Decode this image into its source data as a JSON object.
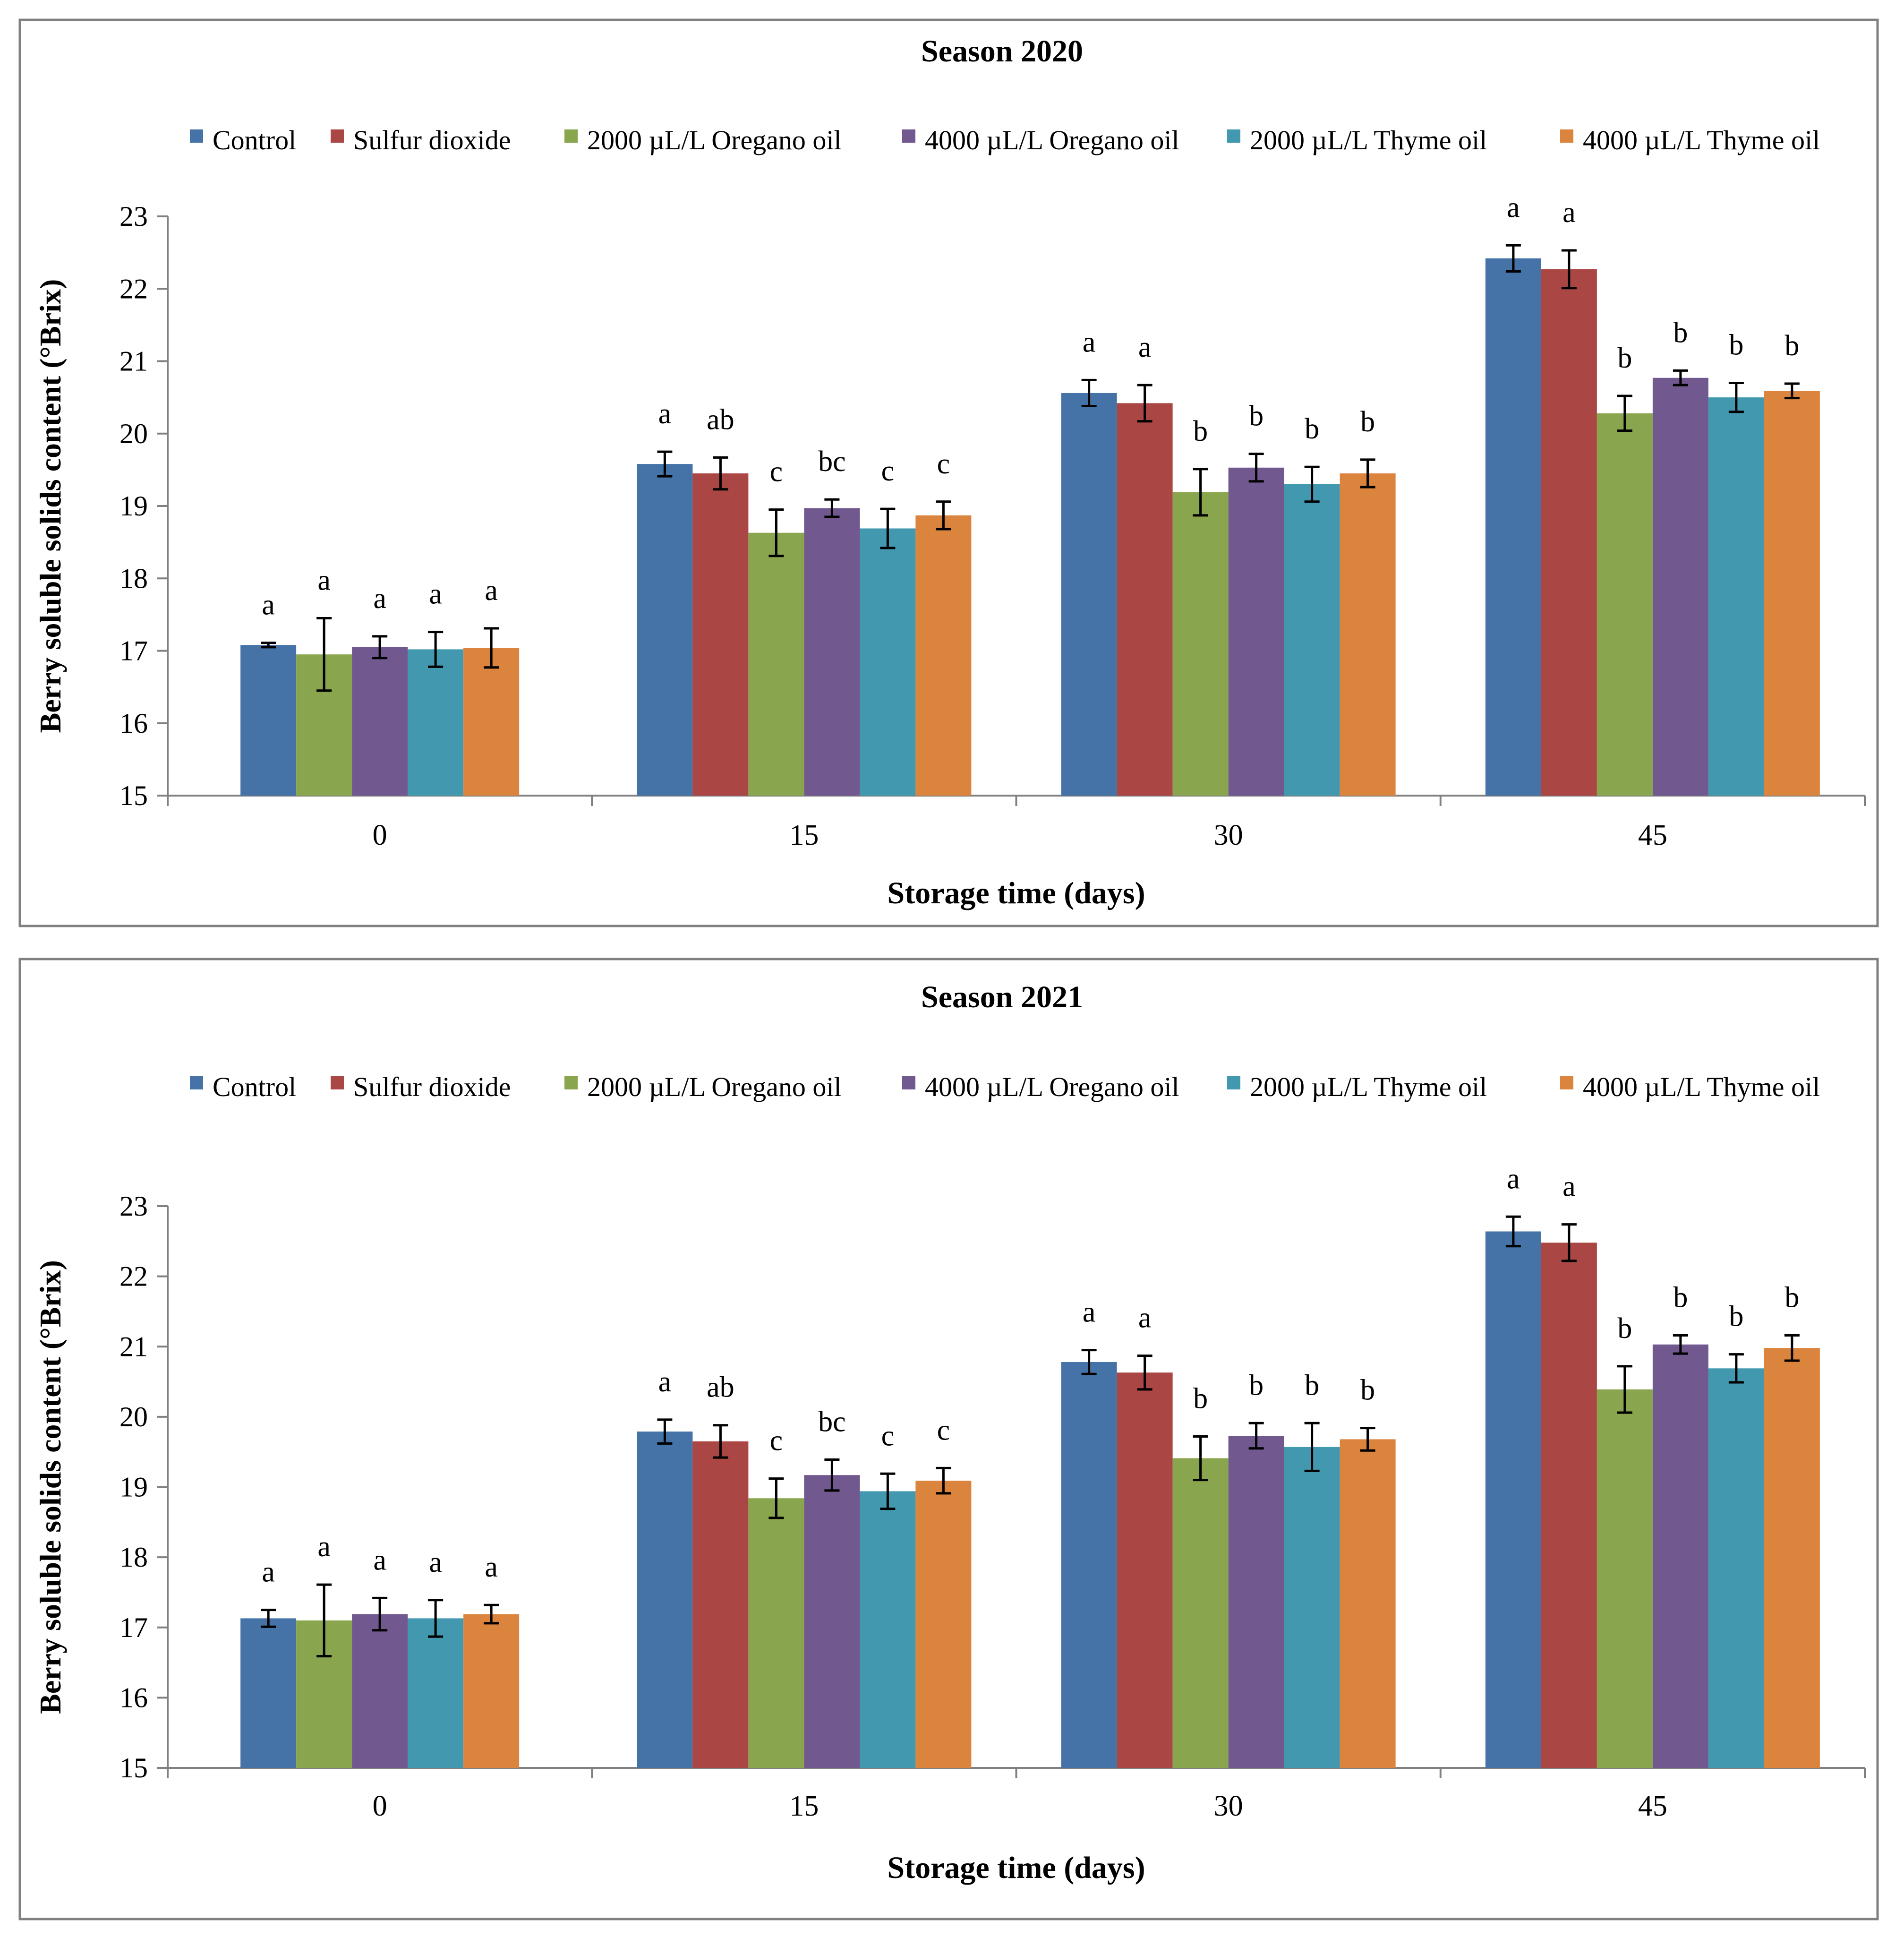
{
  "colors": {
    "Control": "#4572a7",
    "Sulfur dioxide": "#aa4643",
    "2000 µL/L Oregano oil": "#89a54e",
    "4000 µL/L Oregano oil": "#71588f",
    "2000 µL/L Thyme oil": "#4198af",
    "4000 µL/L Thyme oil": "#db843d"
  },
  "chart_data": [
    {
      "type": "bar",
      "title": "Season 2020",
      "xlabel": "Storage time (days)",
      "ylabel": "Berry soluble solids content (°Brix)",
      "ylim": [
        15,
        23
      ],
      "yticks": [
        "15",
        "16",
        "17",
        "18",
        "19",
        "20",
        "21",
        "22",
        "23"
      ],
      "categories": [
        "0",
        "15",
        "30",
        "45"
      ],
      "legend_position": "top",
      "series": [
        {
          "name": "Control",
          "values": [
            17.08,
            19.58,
            20.56,
            22.42
          ],
          "errors": [
            0.03,
            0.17,
            0.18,
            0.18
          ],
          "letters": [
            "a",
            "a",
            "a",
            "a"
          ]
        },
        {
          "name": "Sulfur dioxide",
          "values": [
            null,
            19.45,
            20.42,
            22.27
          ],
          "errors": [
            null,
            0.22,
            0.25,
            0.26
          ],
          "letters": [
            null,
            "ab",
            "a",
            "a"
          ]
        },
        {
          "name": "2000 µL/L Oregano oil",
          "values": [
            16.95,
            18.63,
            19.19,
            20.28
          ],
          "errors": [
            0.5,
            0.32,
            0.32,
            0.24
          ],
          "letters": [
            "a",
            "c",
            "b",
            "b"
          ]
        },
        {
          "name": "4000 µL/L Oregano oil",
          "values": [
            17.05,
            18.97,
            19.53,
            20.77
          ],
          "errors": [
            0.15,
            0.12,
            0.19,
            0.1
          ],
          "letters": [
            "a",
            "bc",
            "b",
            "b"
          ]
        },
        {
          "name": "2000 µL/L Thyme oil",
          "values": [
            17.02,
            18.69,
            19.3,
            20.5
          ],
          "errors": [
            0.24,
            0.27,
            0.24,
            0.2
          ],
          "letters": [
            "a",
            "c",
            "b",
            "b"
          ]
        },
        {
          "name": "4000 µL/L Thyme oil",
          "values": [
            17.04,
            18.87,
            19.45,
            20.59
          ],
          "errors": [
            0.27,
            0.19,
            0.19,
            0.1
          ],
          "letters": [
            "a",
            "c",
            "b",
            "b"
          ]
        }
      ]
    },
    {
      "type": "bar",
      "title": "Season 2021",
      "xlabel": "Storage time (days)",
      "ylabel": "Berry soluble solids content (°Brix)",
      "ylim": [
        15,
        23
      ],
      "yticks": [
        "15",
        "16",
        "17",
        "18",
        "19",
        "20",
        "21",
        "22",
        "23"
      ],
      "categories": [
        "0",
        "15",
        "30",
        "45"
      ],
      "legend_position": "top",
      "series": [
        {
          "name": "Control",
          "values": [
            17.13,
            19.79,
            20.78,
            22.64
          ],
          "errors": [
            0.12,
            0.17,
            0.17,
            0.21
          ],
          "letters": [
            "a",
            "a",
            "a",
            "a"
          ]
        },
        {
          "name": "Sulfur dioxide",
          "values": [
            null,
            19.65,
            20.63,
            22.48
          ],
          "errors": [
            null,
            0.23,
            0.24,
            0.26
          ],
          "letters": [
            null,
            "ab",
            "a",
            "a"
          ]
        },
        {
          "name": "2000 µL/L Oregano oil",
          "values": [
            17.1,
            18.84,
            19.41,
            20.39
          ],
          "errors": [
            0.51,
            0.28,
            0.31,
            0.33
          ],
          "letters": [
            "a",
            "c",
            "b",
            "b"
          ]
        },
        {
          "name": "4000 µL/L Oregano oil",
          "values": [
            17.19,
            19.17,
            19.73,
            21.03
          ],
          "errors": [
            0.23,
            0.22,
            0.18,
            0.13
          ],
          "letters": [
            "a",
            "bc",
            "b",
            "b"
          ]
        },
        {
          "name": "2000 µL/L Thyme oil",
          "values": [
            17.13,
            18.94,
            19.57,
            20.69
          ],
          "errors": [
            0.26,
            0.25,
            0.34,
            0.2
          ],
          "letters": [
            "a",
            "c",
            "b",
            "b"
          ]
        },
        {
          "name": "4000 µL/L Thyme oil",
          "values": [
            17.19,
            19.09,
            19.68,
            20.98
          ],
          "errors": [
            0.13,
            0.18,
            0.16,
            0.18
          ],
          "letters": [
            "a",
            "c",
            "b",
            "b"
          ]
        }
      ]
    }
  ]
}
